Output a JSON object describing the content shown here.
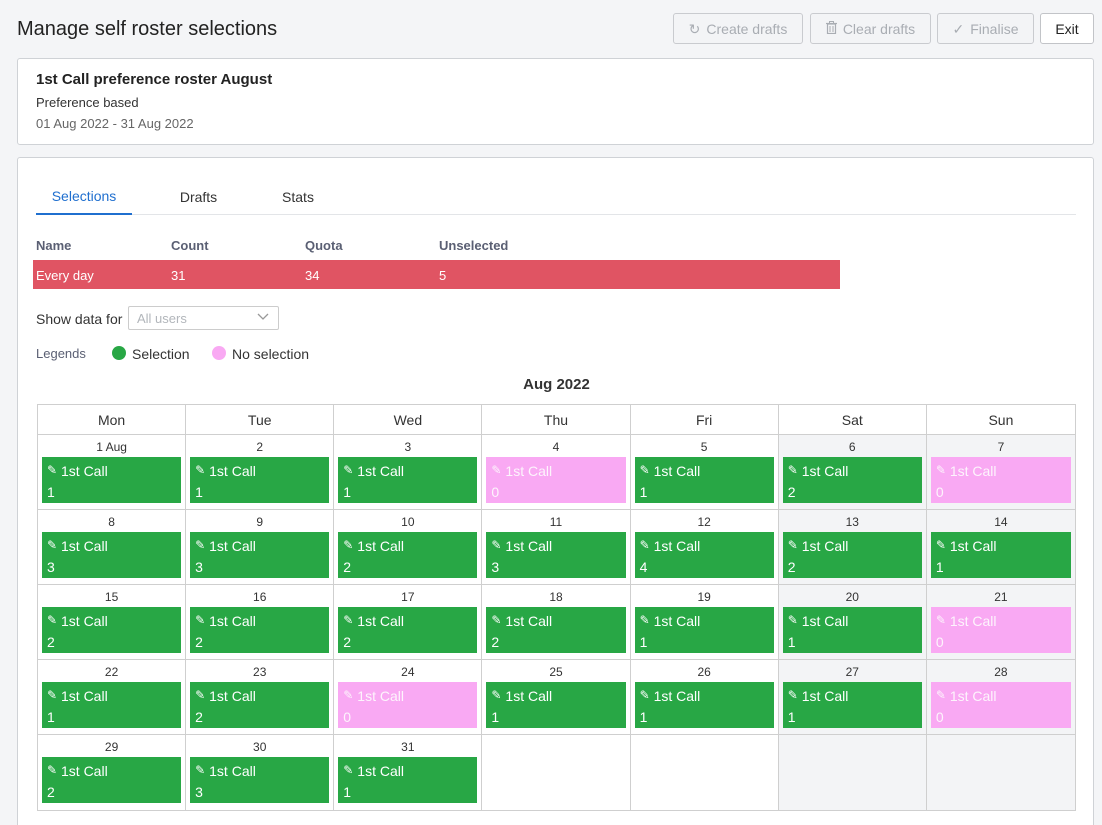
{
  "header": {
    "title": "Manage self roster selections",
    "buttons": {
      "create_drafts": "Create drafts",
      "clear_drafts": "Clear drafts",
      "finalise": "Finalise",
      "exit": "Exit"
    }
  },
  "roster": {
    "title": "1st Call preference roster August",
    "type": "Preference based",
    "dates": "01 Aug 2022 - 31 Aug 2022"
  },
  "tabs": [
    "Selections",
    "Drafts",
    "Stats"
  ],
  "summary": {
    "headers": [
      "Name",
      "Count",
      "Quota",
      "Unselected"
    ],
    "row": [
      "Every day",
      "31",
      "34",
      "5"
    ]
  },
  "filter": {
    "label": "Show data for",
    "placeholder": "All users"
  },
  "legend": {
    "label": "Legends",
    "selection": "Selection",
    "no_selection": "No selection"
  },
  "colors": {
    "selection": "#28a745",
    "no_selection": "#f9a9f3",
    "summary_row": "#e05463",
    "accent": "#1f6fcf"
  },
  "calendar": {
    "month": "Aug 2022",
    "weekdays": [
      "Mon",
      "Tue",
      "Wed",
      "Thu",
      "Fri",
      "Sat",
      "Sun"
    ],
    "shift_label": "1st Call",
    "weeks": [
      [
        {
          "d": "1 Aug",
          "c": "1"
        },
        {
          "d": "2",
          "c": "1"
        },
        {
          "d": "3",
          "c": "1"
        },
        {
          "d": "4",
          "c": "0"
        },
        {
          "d": "5",
          "c": "1"
        },
        {
          "d": "6",
          "c": "2"
        },
        {
          "d": "7",
          "c": "0"
        }
      ],
      [
        {
          "d": "8",
          "c": "3"
        },
        {
          "d": "9",
          "c": "3"
        },
        {
          "d": "10",
          "c": "2"
        },
        {
          "d": "11",
          "c": "3"
        },
        {
          "d": "12",
          "c": "4"
        },
        {
          "d": "13",
          "c": "2"
        },
        {
          "d": "14",
          "c": "1"
        }
      ],
      [
        {
          "d": "15",
          "c": "2"
        },
        {
          "d": "16",
          "c": "2"
        },
        {
          "d": "17",
          "c": "2"
        },
        {
          "d": "18",
          "c": "2"
        },
        {
          "d": "19",
          "c": "1"
        },
        {
          "d": "20",
          "c": "1"
        },
        {
          "d": "21",
          "c": "0"
        }
      ],
      [
        {
          "d": "22",
          "c": "1"
        },
        {
          "d": "23",
          "c": "2"
        },
        {
          "d": "24",
          "c": "0"
        },
        {
          "d": "25",
          "c": "1"
        },
        {
          "d": "26",
          "c": "1"
        },
        {
          "d": "27",
          "c": "1"
        },
        {
          "d": "28",
          "c": "0"
        }
      ],
      [
        {
          "d": "29",
          "c": "2"
        },
        {
          "d": "30",
          "c": "3"
        },
        {
          "d": "31",
          "c": "1"
        },
        null,
        null,
        null,
        null
      ]
    ]
  }
}
